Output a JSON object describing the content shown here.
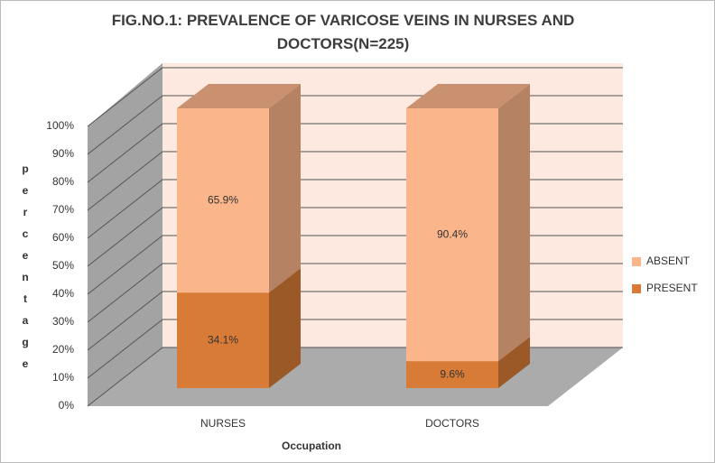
{
  "chart_data": {
    "type": "stacked-bar-3d",
    "title": "FIG.NO.1: PREVALENCE  OF VARICOSE VEINS IN NURSES AND DOCTORS(N=225)",
    "x_label": "Occupation",
    "y_label": "percentage",
    "categories": [
      "NURSES",
      "DOCTORS"
    ],
    "series": [
      {
        "name": "PRESENT",
        "color": "#d77b36",
        "values": [
          34.1,
          9.6
        ],
        "value_labels": [
          "34.1%",
          "9.6%"
        ]
      },
      {
        "name": "ABSENT",
        "color": "#fbb58b",
        "values": [
          65.9,
          90.4
        ],
        "value_labels": [
          "65.9%",
          "90.4%"
        ]
      }
    ],
    "ylim": [
      0,
      100
    ],
    "yticks": [
      {
        "value": 0,
        "label": "0%"
      },
      {
        "value": 10,
        "label": "10%"
      },
      {
        "value": 20,
        "label": "20%"
      },
      {
        "value": 30,
        "label": "30%"
      },
      {
        "value": 40,
        "label": "40%"
      },
      {
        "value": 50,
        "label": "50%"
      },
      {
        "value": 60,
        "label": "60%"
      },
      {
        "value": 70,
        "label": "70%"
      },
      {
        "value": 80,
        "label": "80%"
      },
      {
        "value": 90,
        "label": "90%"
      },
      {
        "value": 100,
        "label": "100%"
      }
    ],
    "grid": true,
    "legend": "right"
  }
}
